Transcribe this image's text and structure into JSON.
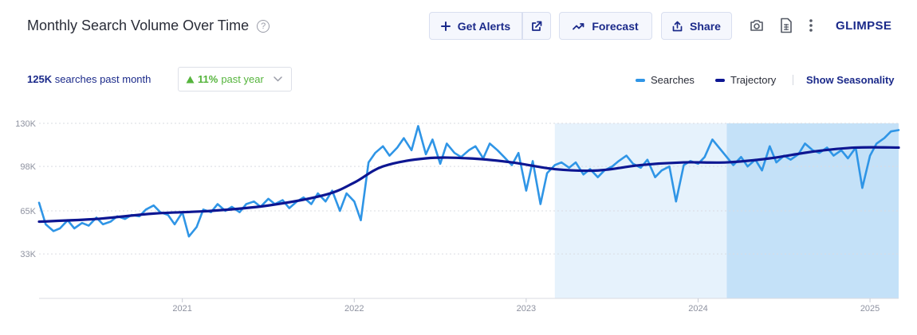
{
  "header": {
    "title": "Monthly Search Volume Over Time",
    "help_glyph": "?",
    "get_alerts_label": "Get Alerts",
    "forecast_label": "Forecast",
    "share_label": "Share",
    "logo_text": "GLIMPSE"
  },
  "summary": {
    "searches_value": "125K",
    "searches_text": "searches past month",
    "growth_value": "11%",
    "growth_text": "past year"
  },
  "legend": {
    "searches_label": "Searches",
    "trajectory_label": "Trajectory",
    "seasonality_label": "Show Seasonality"
  },
  "colors": {
    "searches": "#2f95e6",
    "trajectory": "#0d1692",
    "forecast_band_light": "#e6f2fc",
    "forecast_band_dark": "#c4e1f8",
    "brand": "#1b2a8a",
    "growth": "#55b43c"
  },
  "chart_data": {
    "type": "line",
    "x_start": "2020-03",
    "x_end": "2025-03",
    "x_ticks": [
      "2021",
      "2022",
      "2023",
      "2024",
      "2025"
    ],
    "y_ticks": [
      "33K",
      "65K",
      "98K",
      "130K"
    ],
    "y_tick_values": [
      33000,
      65000,
      98000,
      130000
    ],
    "ylim": [
      0,
      130000
    ],
    "highlight_ranges": [
      {
        "from": "2023-03",
        "to": "2024-03",
        "shade": "light"
      },
      {
        "from": "2024-03",
        "to": "2025-03",
        "shade": "dark"
      }
    ],
    "series": [
      {
        "name": "Searches",
        "points": [
          [
            "2020-03-01",
            71000
          ],
          [
            "2020-03-15",
            55000
          ],
          [
            "2020-04-01",
            50000
          ],
          [
            "2020-04-15",
            52000
          ],
          [
            "2020-05-01",
            58000
          ],
          [
            "2020-05-15",
            52000
          ],
          [
            "2020-06-01",
            56000
          ],
          [
            "2020-06-15",
            54000
          ],
          [
            "2020-07-01",
            60000
          ],
          [
            "2020-07-15",
            55000
          ],
          [
            "2020-08-01",
            57000
          ],
          [
            "2020-08-15",
            61000
          ],
          [
            "2020-09-01",
            59000
          ],
          [
            "2020-09-15",
            62000
          ],
          [
            "2020-10-01",
            61000
          ],
          [
            "2020-10-15",
            66000
          ],
          [
            "2020-11-01",
            69000
          ],
          [
            "2020-11-15",
            64000
          ],
          [
            "2020-12-01",
            62000
          ],
          [
            "2020-12-15",
            55000
          ],
          [
            "2021-01-01",
            64000
          ],
          [
            "2021-01-15",
            46000
          ],
          [
            "2021-02-01",
            53000
          ],
          [
            "2021-02-15",
            66000
          ],
          [
            "2021-03-01",
            64000
          ],
          [
            "2021-03-15",
            70000
          ],
          [
            "2021-04-01",
            65000
          ],
          [
            "2021-04-15",
            68000
          ],
          [
            "2021-05-01",
            64000
          ],
          [
            "2021-05-15",
            70000
          ],
          [
            "2021-06-01",
            72000
          ],
          [
            "2021-06-15",
            68000
          ],
          [
            "2021-07-01",
            74000
          ],
          [
            "2021-07-15",
            70000
          ],
          [
            "2021-08-01",
            73000
          ],
          [
            "2021-08-15",
            67000
          ],
          [
            "2021-09-01",
            72000
          ],
          [
            "2021-09-15",
            75000
          ],
          [
            "2021-10-01",
            70000
          ],
          [
            "2021-10-15",
            78000
          ],
          [
            "2021-11-01",
            72000
          ],
          [
            "2021-11-15",
            80000
          ],
          [
            "2021-12-01",
            65000
          ],
          [
            "2021-12-15",
            78000
          ],
          [
            "2022-01-01",
            72000
          ],
          [
            "2022-01-15",
            58000
          ],
          [
            "2022-02-01",
            101000
          ],
          [
            "2022-02-15",
            108000
          ],
          [
            "2022-03-01",
            113000
          ],
          [
            "2022-03-15",
            106000
          ],
          [
            "2022-04-01",
            112000
          ],
          [
            "2022-04-15",
            119000
          ],
          [
            "2022-05-01",
            110000
          ],
          [
            "2022-05-15",
            128000
          ],
          [
            "2022-06-01",
            107000
          ],
          [
            "2022-06-15",
            118000
          ],
          [
            "2022-07-01",
            100000
          ],
          [
            "2022-07-15",
            115000
          ],
          [
            "2022-08-01",
            108000
          ],
          [
            "2022-08-15",
            105000
          ],
          [
            "2022-09-01",
            110000
          ],
          [
            "2022-09-15",
            113000
          ],
          [
            "2022-10-01",
            104000
          ],
          [
            "2022-10-15",
            115000
          ],
          [
            "2022-11-01",
            110000
          ],
          [
            "2022-11-15",
            105000
          ],
          [
            "2022-12-01",
            99000
          ],
          [
            "2022-12-15",
            108000
          ],
          [
            "2023-01-01",
            80000
          ],
          [
            "2023-01-15",
            102000
          ],
          [
            "2023-02-01",
            70000
          ],
          [
            "2023-02-15",
            93000
          ],
          [
            "2023-03-01",
            99000
          ],
          [
            "2023-03-15",
            101000
          ],
          [
            "2023-04-01",
            97000
          ],
          [
            "2023-04-15",
            101000
          ],
          [
            "2023-05-01",
            92000
          ],
          [
            "2023-05-15",
            96000
          ],
          [
            "2023-06-01",
            90000
          ],
          [
            "2023-06-15",
            95000
          ],
          [
            "2023-07-01",
            98000
          ],
          [
            "2023-07-15",
            102000
          ],
          [
            "2023-08-01",
            106000
          ],
          [
            "2023-08-15",
            100000
          ],
          [
            "2023-09-01",
            97000
          ],
          [
            "2023-09-15",
            103000
          ],
          [
            "2023-10-01",
            90000
          ],
          [
            "2023-10-15",
            95000
          ],
          [
            "2023-11-01",
            98000
          ],
          [
            "2023-11-15",
            72000
          ],
          [
            "2023-12-01",
            99000
          ],
          [
            "2023-12-15",
            102000
          ],
          [
            "2024-01-01",
            100000
          ],
          [
            "2024-01-15",
            105000
          ],
          [
            "2024-02-01",
            118000
          ],
          [
            "2024-02-15",
            112000
          ],
          [
            "2024-03-01",
            105000
          ],
          [
            "2024-03-15",
            99000
          ],
          [
            "2024-04-01",
            105000
          ],
          [
            "2024-04-15",
            98000
          ],
          [
            "2024-05-01",
            103000
          ],
          [
            "2024-05-15",
            95000
          ],
          [
            "2024-06-01",
            113000
          ],
          [
            "2024-06-15",
            101000
          ],
          [
            "2024-07-01",
            106000
          ],
          [
            "2024-07-15",
            103000
          ],
          [
            "2024-08-01",
            107000
          ],
          [
            "2024-08-15",
            115000
          ],
          [
            "2024-09-01",
            110000
          ],
          [
            "2024-09-15",
            108000
          ],
          [
            "2024-10-01",
            112000
          ],
          [
            "2024-10-15",
            106000
          ],
          [
            "2024-11-01",
            110000
          ],
          [
            "2024-11-15",
            104000
          ],
          [
            "2024-12-01",
            112000
          ],
          [
            "2024-12-15",
            82000
          ],
          [
            "2025-01-01",
            106000
          ],
          [
            "2025-01-15",
            115000
          ],
          [
            "2025-02-01",
            119000
          ],
          [
            "2025-02-15",
            124000
          ],
          [
            "2025-03-01",
            125000
          ]
        ]
      },
      {
        "name": "Trajectory",
        "points": [
          [
            "2020-03-01",
            57000
          ],
          [
            "2020-07-01",
            59000
          ],
          [
            "2020-11-01",
            63000
          ],
          [
            "2021-03-01",
            65000
          ],
          [
            "2021-07-01",
            69000
          ],
          [
            "2021-11-01",
            77000
          ],
          [
            "2022-01-01",
            86000
          ],
          [
            "2022-03-01",
            98000
          ],
          [
            "2022-06-01",
            104000
          ],
          [
            "2022-09-01",
            104000
          ],
          [
            "2022-12-01",
            101000
          ],
          [
            "2023-03-01",
            96000
          ],
          [
            "2023-06-01",
            95000
          ],
          [
            "2023-09-01",
            99000
          ],
          [
            "2023-12-01",
            101000
          ],
          [
            "2024-03-01",
            101000
          ],
          [
            "2024-06-01",
            104000
          ],
          [
            "2024-09-01",
            109000
          ],
          [
            "2024-12-01",
            112000
          ],
          [
            "2025-03-01",
            112000
          ]
        ]
      }
    ]
  }
}
